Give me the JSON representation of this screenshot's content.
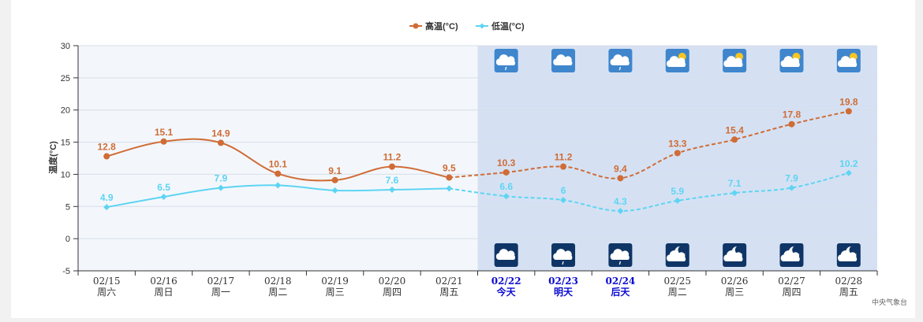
{
  "chart_data": {
    "type": "line",
    "title": "",
    "ylabel": "温度(°C)",
    "ylim": [
      -5,
      30
    ],
    "yticks": [
      30,
      25,
      20,
      15,
      10,
      5,
      0,
      -5
    ],
    "grid": true,
    "legend_position": "top-center",
    "dates": [
      "02/15",
      "02/16",
      "02/17",
      "02/18",
      "02/19",
      "02/20",
      "02/21",
      "02/22",
      "02/23",
      "02/24",
      "02/25",
      "02/26",
      "02/27",
      "02/28"
    ],
    "weekdays": [
      "周六",
      "周日",
      "周一",
      "周二",
      "周三",
      "周四",
      "周五",
      "今天",
      "明天",
      "后天",
      "周二",
      "周三",
      "周四",
      "周五"
    ],
    "highlighted_days": [
      "02/22",
      "02/23",
      "02/24"
    ],
    "forecast_start_index": 7,
    "series": [
      {
        "name": "高温(°C)",
        "color": "#d06c36",
        "values": [
          12.8,
          15.1,
          14.9,
          10.1,
          9.1,
          11.2,
          9.5,
          10.3,
          11.2,
          9.4,
          13.3,
          15.4,
          17.8,
          19.8
        ]
      },
      {
        "name": "低温(°C)",
        "color": "#5ed4f3",
        "values": [
          4.9,
          6.5,
          7.9,
          8.3,
          7.5,
          7.6,
          7.8,
          6.6,
          6,
          4.3,
          5.9,
          7.1,
          7.9,
          10.2
        ]
      }
    ],
    "value_labels": {
      "高温(°C)": [
        "12.8",
        "15.1",
        "14.9",
        "10.1",
        "9.1",
        "11.2",
        "9.5",
        "10.3",
        "11.2",
        "9.4",
        "13.3",
        "15.4",
        "17.8",
        "19.8"
      ],
      "低温(°C)": [
        "4.9",
        "6.5",
        "7.9",
        "",
        "",
        "7.6",
        "",
        "6.6",
        "6",
        "4.3",
        "5.9",
        "7.1",
        "7.9",
        "10.2"
      ]
    },
    "day_icons": [
      "light-rain-icon",
      "cloudy-icon",
      "light-rain-icon",
      "partly-cloudy-day-icon",
      "partly-cloudy-day-icon",
      "partly-cloudy-day-icon",
      "partly-cloudy-day-icon"
    ],
    "night_icons": [
      "cloudy-night-icon",
      "light-rain-night-icon",
      "light-rain-night-icon",
      "partly-cloudy-night-icon",
      "partly-cloudy-night-icon",
      "partly-cloudy-night-icon",
      "partly-cloudy-night-icon"
    ]
  },
  "credit": "中央气象台"
}
